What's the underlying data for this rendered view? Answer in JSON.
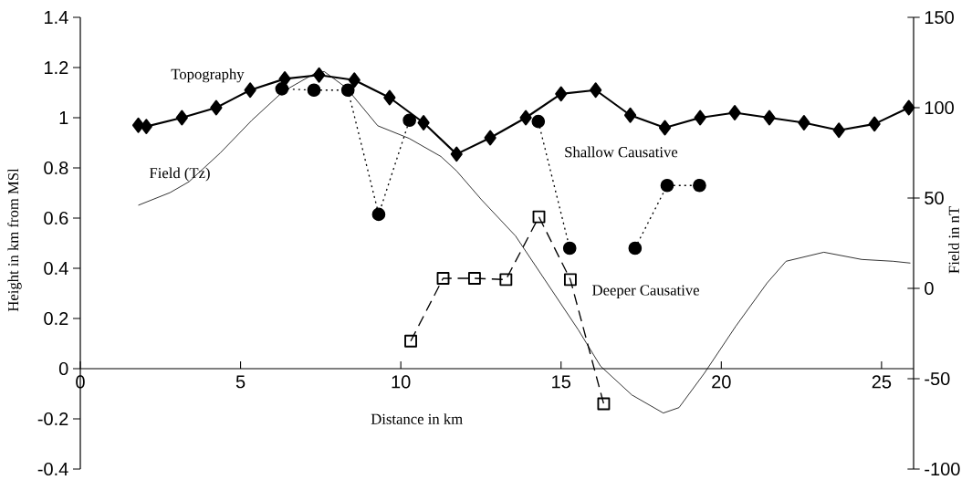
{
  "chart_data": {
    "type": "line",
    "xlabel": "Distance in km",
    "ylabel": "Height in km from MSl",
    "y2label": "Field in nT",
    "xlim": [
      0,
      26
    ],
    "xticks": [
      0,
      5,
      10,
      15,
      20,
      25
    ],
    "ylim": [
      -0.4,
      1.4
    ],
    "yticks": [
      -0.4,
      -0.2,
      0,
      0.2,
      0.4,
      0.6,
      0.8,
      1,
      1.2,
      1.4
    ],
    "y2lim": [
      -100,
      150
    ],
    "y2ticks": [
      -100,
      -50,
      0,
      50,
      100,
      150
    ],
    "series": [
      {
        "name": "Topography",
        "color": "#000000",
        "marker": "diamond",
        "line_style": "solid",
        "x": [
          1.81,
          2.06,
          3.17,
          4.24,
          5.3,
          6.38,
          7.45,
          8.55,
          9.65,
          10.71,
          11.74,
          12.79,
          13.9,
          15.0,
          16.08,
          17.16,
          18.24,
          19.34,
          20.42,
          21.5,
          22.58,
          23.67,
          24.78,
          25.85
        ],
        "values": [
          0.97,
          0.965,
          1.0,
          1.04,
          1.11,
          1.155,
          1.17,
          1.15,
          1.08,
          0.98,
          0.855,
          0.92,
          1.0,
          1.095,
          1.11,
          1.01,
          0.96,
          1.0,
          1.02,
          1.0,
          0.98,
          0.95,
          0.975,
          1.04
        ]
      },
      {
        "name": "Field (Tz)",
        "color": "#000000",
        "marker": "none",
        "line_style": "solid",
        "axis": "y2",
        "x": [
          1.81,
          2.8,
          3.39,
          4.37,
          5.35,
          6.33,
          7.32,
          7.61,
          8.3,
          9.28,
          10.26,
          11.25,
          11.74,
          12.52,
          13.58,
          14.56,
          15.54,
          16.23,
          17.21,
          18.19,
          18.68,
          19.47,
          20.45,
          21.43,
          22.02,
          23.2,
          24.38,
          25.36,
          25.9
        ],
        "values": [
          46,
          53,
          59,
          75,
          93,
          109,
          119,
          120,
          111,
          90,
          83,
          73,
          65,
          49,
          29,
          3,
          -23,
          -43,
          -59,
          -69,
          -66,
          -47,
          -21,
          3,
          15,
          20,
          16,
          15,
          14
        ]
      },
      {
        "name": "Shallow Causative",
        "color": "#000000",
        "marker": "circle",
        "line_style": "dotted",
        "x": [
          6.29,
          7.29,
          8.35,
          9.31,
          10.27,
          null,
          14.29,
          15.27,
          null,
          17.31,
          18.31,
          19.32
        ],
        "values": [
          1.115,
          1.11,
          1.11,
          0.615,
          0.99,
          null,
          0.985,
          0.48,
          null,
          0.48,
          0.73,
          0.73
        ]
      },
      {
        "name": "Deeper Causative",
        "color": "#000000",
        "marker": "square",
        "line_style": "dashed",
        "x": [
          10.31,
          11.32,
          12.3,
          13.28,
          14.31,
          15.29,
          16.33
        ],
        "values": [
          0.11,
          0.36,
          0.36,
          0.355,
          0.605,
          0.355,
          -0.14
        ]
      }
    ]
  }
}
